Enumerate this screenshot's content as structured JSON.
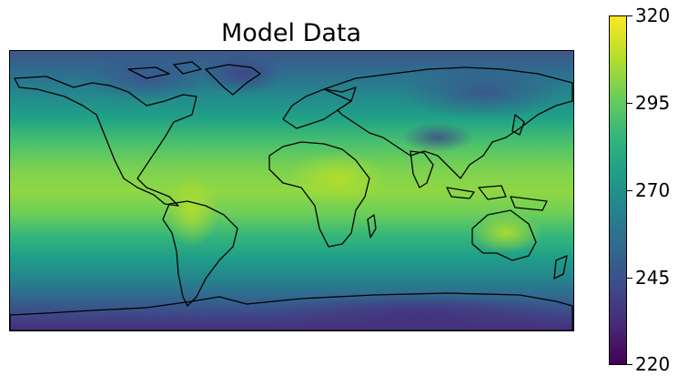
{
  "map": {
    "title": "Model Data",
    "field": "temperature-like scalar field (viridis colormap)",
    "colormap": "viridis",
    "land_outline_color": "#000000",
    "colorbar": {
      "min": 220,
      "max": 320,
      "ticks": [
        "320",
        "295",
        "270",
        "245",
        "220"
      ]
    }
  }
}
